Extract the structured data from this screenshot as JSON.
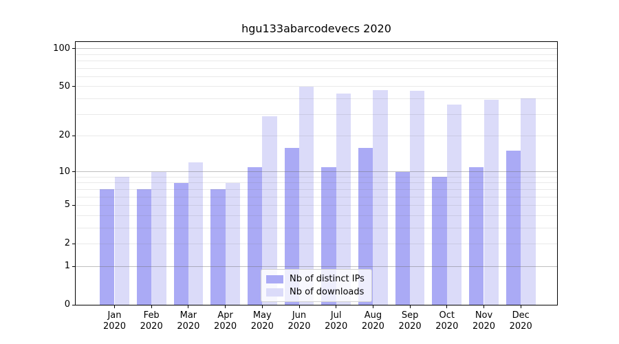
{
  "chart_data": {
    "type": "bar",
    "title": "hgu133abarcodevecs 2020",
    "categories": [
      {
        "month": "Jan",
        "year": "2020"
      },
      {
        "month": "Feb",
        "year": "2020"
      },
      {
        "month": "Mar",
        "year": "2020"
      },
      {
        "month": "Apr",
        "year": "2020"
      },
      {
        "month": "May",
        "year": "2020"
      },
      {
        "month": "Jun",
        "year": "2020"
      },
      {
        "month": "Jul",
        "year": "2020"
      },
      {
        "month": "Aug",
        "year": "2020"
      },
      {
        "month": "Sep",
        "year": "2020"
      },
      {
        "month": "Oct",
        "year": "2020"
      },
      {
        "month": "Nov",
        "year": "2020"
      },
      {
        "month": "Dec",
        "year": "2020"
      }
    ],
    "series": [
      {
        "key": "distinct-ips",
        "name": "Nb of distinct IPs",
        "color": "#aaaaf5",
        "values": [
          7,
          7,
          8,
          7,
          11,
          16,
          11,
          16,
          10,
          9,
          11,
          15
        ]
      },
      {
        "key": "downloads",
        "name": "Nb of downloads",
        "color": "#dbdbf9",
        "values": [
          9,
          10,
          12,
          8,
          29,
          50,
          44,
          47,
          46,
          36,
          39,
          40
        ]
      }
    ],
    "y_axis": {
      "scale": "log10(1+v)",
      "ticks": [
        0,
        1,
        2,
        5,
        10,
        20,
        50,
        100
      ],
      "top_value": 113,
      "major_gridlines": [
        1,
        10,
        100
      ],
      "minor_gridlines": [
        2,
        3,
        4,
        5,
        6,
        7,
        8,
        9,
        20,
        30,
        40,
        50,
        60,
        70,
        80,
        90
      ]
    },
    "legend": {
      "location": "lower center"
    },
    "grid": true,
    "colors": {
      "bar_ips": "#aaaaf5",
      "bar_downloads": "#dbdbf9",
      "major_grid": "#c4c4c4",
      "minor_grid": "#ebebeb",
      "spine": "#000000",
      "text": "#000000",
      "background": "#ffffff"
    }
  }
}
